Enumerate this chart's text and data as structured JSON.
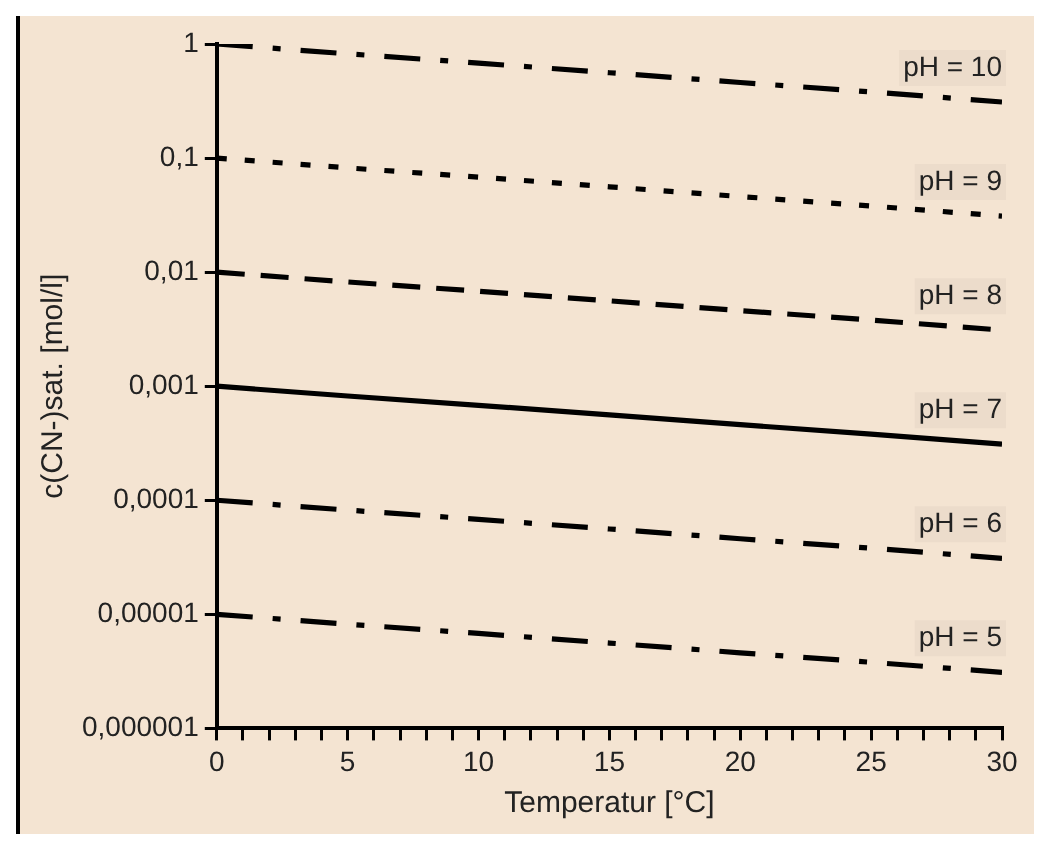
{
  "chart_data": {
    "type": "line",
    "xlabel": "Temperatur [°C]",
    "ylabel": "c(CN-)sat. [mol/l]",
    "x": [
      0,
      5,
      10,
      15,
      20,
      25,
      30
    ],
    "xlim": [
      0,
      30
    ],
    "xticks": [
      0,
      {
        "value": 1,
        "label": null
      },
      {
        "value": 2,
        "label": null
      },
      {
        "value": 3,
        "label": null
      },
      {
        "value": 4,
        "label": null
      },
      5,
      {
        "value": 6,
        "label": null
      },
      {
        "value": 7,
        "label": null
      },
      {
        "value": 8,
        "label": null
      },
      {
        "value": 9,
        "label": null
      },
      10,
      {
        "value": 11,
        "label": null
      },
      {
        "value": 12,
        "label": null
      },
      {
        "value": 13,
        "label": null
      },
      {
        "value": 14,
        "label": null
      },
      15,
      {
        "value": 16,
        "label": null
      },
      {
        "value": 17,
        "label": null
      },
      {
        "value": 18,
        "label": null
      },
      {
        "value": 19,
        "label": null
      },
      20,
      {
        "value": 21,
        "label": null
      },
      {
        "value": 22,
        "label": null
      },
      {
        "value": 23,
        "label": null
      },
      {
        "value": 24,
        "label": null
      },
      25,
      {
        "value": 26,
        "label": null
      },
      {
        "value": 27,
        "label": null
      },
      {
        "value": 28,
        "label": null
      },
      {
        "value": 29,
        "label": null
      },
      30
    ],
    "ylim": [
      1e-06,
      1
    ],
    "yticks": [
      {
        "value": 1e-06,
        "label": "0,000001"
      },
      {
        "value": 1e-05,
        "label": "0,00001"
      },
      {
        "value": 0.0001,
        "label": "0,0001"
      },
      {
        "value": 0.001,
        "label": "0,001"
      },
      {
        "value": 0.01,
        "label": "0,01"
      },
      {
        "value": 0.1,
        "label": "0,1"
      },
      {
        "value": 1,
        "label": "1"
      }
    ],
    "log": "y",
    "grid": false,
    "legend": false,
    "marker": "none",
    "series": [
      {
        "name": "pH = 10",
        "color": "#000000",
        "line_style": "dashdot",
        "values": [
          1,
          0.82,
          0.68,
          0.56,
          0.46,
          0.38,
          0.31
        ]
      },
      {
        "name": "pH = 9",
        "color": "#000000",
        "line_style": "dotted",
        "values": [
          0.1,
          0.082,
          0.068,
          0.056,
          0.046,
          0.038,
          0.031
        ]
      },
      {
        "name": "pH = 8",
        "color": "#000000",
        "line_style": "dashed",
        "values": [
          0.01,
          0.0082,
          0.0068,
          0.0056,
          0.0046,
          0.0038,
          0.0031
        ]
      },
      {
        "name": "pH = 7",
        "color": "#000000",
        "line_style": "solid",
        "values": [
          0.001,
          0.00082,
          0.00068,
          0.00056,
          0.00046,
          0.00038,
          0.00031
        ]
      },
      {
        "name": "pH = 6",
        "color": "#000000",
        "line_style": "dashdot",
        "values": [
          0.0001,
          8.2e-05,
          6.8e-05,
          5.6e-05,
          4.6e-05,
          3.8e-05,
          3.1e-05
        ]
      },
      {
        "name": "pH = 5",
        "color": "#000000",
        "line_style": "dashdot",
        "values": [
          1e-05,
          8.2e-06,
          6.8e-06,
          5.6e-06,
          4.6e-06,
          3.8e-06,
          3.1e-06
        ]
      }
    ]
  }
}
